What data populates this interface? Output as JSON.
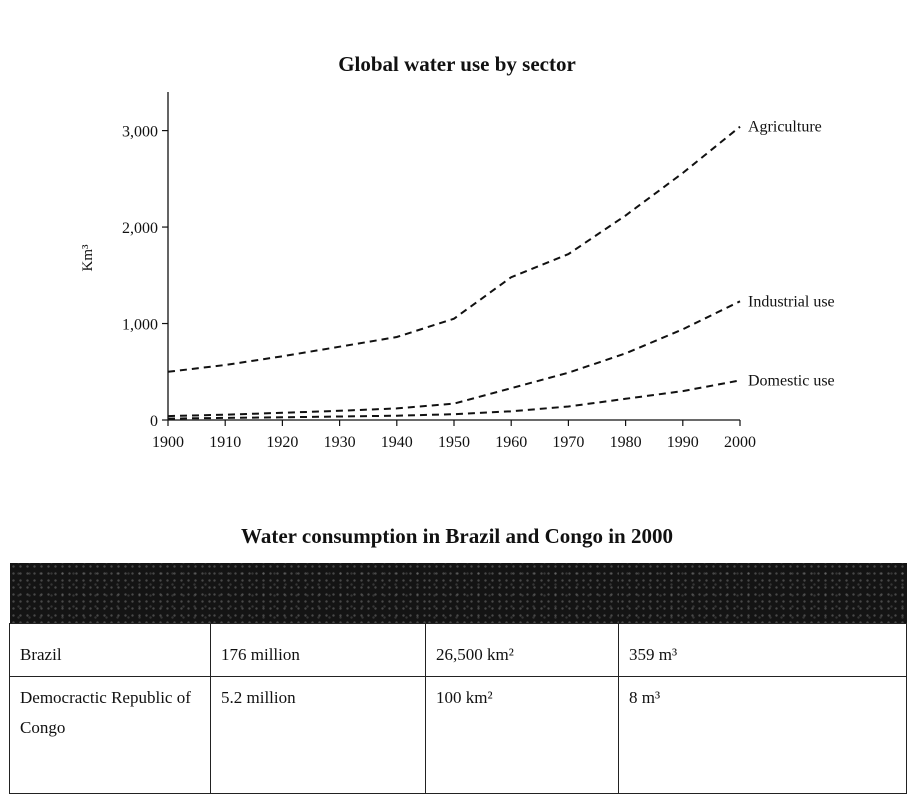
{
  "chart_data": {
    "type": "line",
    "title": "Global water use by sector",
    "xlabel": "",
    "ylabel": "Km³",
    "x": [
      1900,
      1910,
      1920,
      1930,
      1940,
      1950,
      1960,
      1970,
      1980,
      1990,
      2000
    ],
    "xlim": [
      1900,
      2000
    ],
    "ylim": [
      0,
      3400
    ],
    "yticks": [
      0,
      1000,
      2000,
      3000
    ],
    "ytick_labels": [
      "0",
      "1,000",
      "2,000",
      "3,000"
    ],
    "xtick_labels": [
      "1900",
      "1910",
      "1920",
      "1930",
      "1940",
      "1950",
      "1960",
      "1970",
      "1980",
      "1990",
      "2000"
    ],
    "grid": false,
    "legend": "labels at line ends",
    "series": [
      {
        "name": "Agriculture",
        "values": [
          500,
          570,
          660,
          760,
          860,
          1050,
          1480,
          1720,
          2120,
          2560,
          3040
        ]
      },
      {
        "name": "Industrial use",
        "values": [
          40,
          55,
          75,
          95,
          120,
          170,
          330,
          490,
          690,
          940,
          1230
        ]
      },
      {
        "name": "Domestic use",
        "values": [
          15,
          22,
          28,
          36,
          45,
          60,
          90,
          140,
          220,
          300,
          410
        ]
      }
    ]
  },
  "table": {
    "title": "Water consumption in Brazil and Congo in 2000",
    "rows": [
      [
        "Brazil",
        "176 million",
        "26,500 km²",
        "359 m³"
      ],
      [
        "Democractic Republic of Congo",
        "5.2 million",
        "100 km²",
        "8 m³"
      ]
    ]
  }
}
